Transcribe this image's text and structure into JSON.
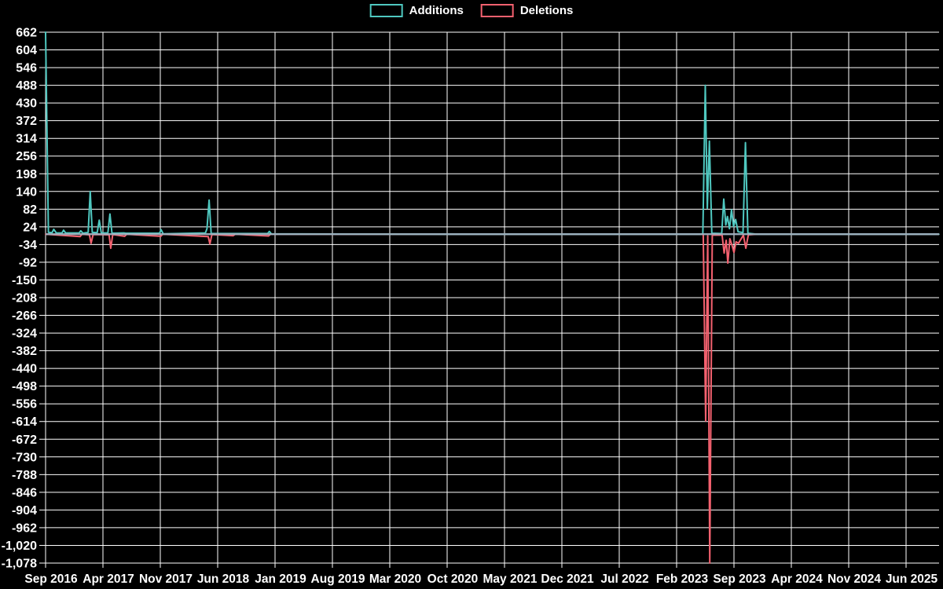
{
  "legend": {
    "items": [
      {
        "label": "Additions",
        "color": "#4FC8C0"
      },
      {
        "label": "Deletions",
        "color": "#F4616F"
      }
    ]
  },
  "chart_data": {
    "type": "line",
    "title": "",
    "xlabel": "",
    "ylabel": "",
    "background_color": "#000000",
    "grid_color": "#FFFFFF",
    "text_color": "#FFFFFF",
    "grid": "on",
    "legend_position": "top-center",
    "x_axis": {
      "tick_labels": [
        "Sep 2016",
        "Apr 2017",
        "Nov 2017",
        "Jun 2018",
        "Jan 2019",
        "Aug 2019",
        "Mar 2020",
        "Oct 2020",
        "May 2021",
        "Dec 2021",
        "Jul 2022",
        "Feb 2023",
        "Sep 2023",
        "Apr 2024",
        "Nov 2024",
        "Jun 2025"
      ],
      "months_between_ticks": 7,
      "domain_months": [
        0,
        109
      ]
    },
    "y_axis": {
      "min": -1078,
      "max": 662,
      "step": 58,
      "tick_labels": [
        "662",
        "604",
        "546",
        "488",
        "430",
        "372",
        "314",
        "256",
        "198",
        "140",
        "82",
        "24",
        "-34",
        "-92",
        "-150",
        "-208",
        "-266",
        "-324",
        "-382",
        "-440",
        "-498",
        "-556",
        "-614",
        "-672",
        "-730",
        "-788",
        "-846",
        "-904",
        "-962",
        "-1,020",
        "-1,078"
      ]
    },
    "baseline": {
      "value": 0,
      "color": "#9FB1BF"
    },
    "series": [
      {
        "name": "Additions",
        "color": "#4FC8C0",
        "points": [
          [
            0,
            662
          ],
          [
            0.35,
            6
          ],
          [
            0.8,
            5
          ],
          [
            1.0,
            16
          ],
          [
            1.3,
            4
          ],
          [
            2.0,
            4
          ],
          [
            2.2,
            13
          ],
          [
            2.45,
            4
          ],
          [
            4.1,
            4
          ],
          [
            4.3,
            11
          ],
          [
            4.55,
            3
          ],
          [
            5.2,
            6
          ],
          [
            5.45,
            140
          ],
          [
            5.7,
            6
          ],
          [
            6.3,
            5
          ],
          [
            6.55,
            46
          ],
          [
            6.8,
            4
          ],
          [
            7.6,
            4
          ],
          [
            7.85,
            66
          ],
          [
            8.1,
            3
          ],
          [
            9.55,
            4
          ],
          [
            9.8,
            3
          ],
          [
            13.9,
            3
          ],
          [
            14.1,
            15
          ],
          [
            14.35,
            1
          ],
          [
            19.5,
            4
          ],
          [
            19.7,
            18
          ],
          [
            19.95,
            112
          ],
          [
            20.2,
            2
          ],
          [
            27.1,
            2
          ],
          [
            27.3,
            9
          ],
          [
            27.55,
            1
          ],
          [
            50,
            0
          ],
          [
            79.9,
            0
          ],
          [
            80.2,
            2
          ],
          [
            80.5,
            488
          ],
          [
            80.75,
            85
          ],
          [
            81.0,
            305
          ],
          [
            81.3,
            3
          ],
          [
            82.5,
            2
          ],
          [
            82.75,
            115
          ],
          [
            83.0,
            30
          ],
          [
            83.2,
            58
          ],
          [
            83.45,
            18
          ],
          [
            83.7,
            80
          ],
          [
            83.95,
            25
          ],
          [
            84.2,
            48
          ],
          [
            84.5,
            8
          ],
          [
            85.1,
            5
          ],
          [
            85.4,
            300
          ],
          [
            85.7,
            3
          ],
          [
            86.8,
            0
          ],
          [
            109,
            0
          ]
        ]
      },
      {
        "name": "Deletions",
        "color": "#F4616F",
        "points": [
          [
            0,
            0
          ],
          [
            4.2,
            -8
          ],
          [
            4.45,
            0
          ],
          [
            5.35,
            -2
          ],
          [
            5.55,
            -30
          ],
          [
            5.8,
            -1
          ],
          [
            7.75,
            -2
          ],
          [
            7.95,
            -46
          ],
          [
            8.2,
            -1
          ],
          [
            9.65,
            -7
          ],
          [
            9.9,
            0
          ],
          [
            14.05,
            -7
          ],
          [
            14.3,
            0
          ],
          [
            19.85,
            -8
          ],
          [
            20.05,
            -32
          ],
          [
            20.3,
            -1
          ],
          [
            22.9,
            -5
          ],
          [
            23.15,
            0
          ],
          [
            27.2,
            -6
          ],
          [
            27.45,
            0
          ],
          [
            60,
            0
          ],
          [
            80.25,
            0
          ],
          [
            80.55,
            -612
          ],
          [
            80.8,
            -5
          ],
          [
            81.05,
            -1078
          ],
          [
            81.35,
            -3
          ],
          [
            82.55,
            -3
          ],
          [
            82.8,
            -62
          ],
          [
            83.05,
            -20
          ],
          [
            83.25,
            -95
          ],
          [
            83.5,
            -15
          ],
          [
            83.75,
            -35
          ],
          [
            84.0,
            -60
          ],
          [
            84.25,
            -25
          ],
          [
            84.55,
            -30
          ],
          [
            85.15,
            -3
          ],
          [
            85.45,
            -46
          ],
          [
            85.75,
            -2
          ],
          [
            86.8,
            0
          ],
          [
            109,
            0
          ]
        ]
      }
    ]
  }
}
